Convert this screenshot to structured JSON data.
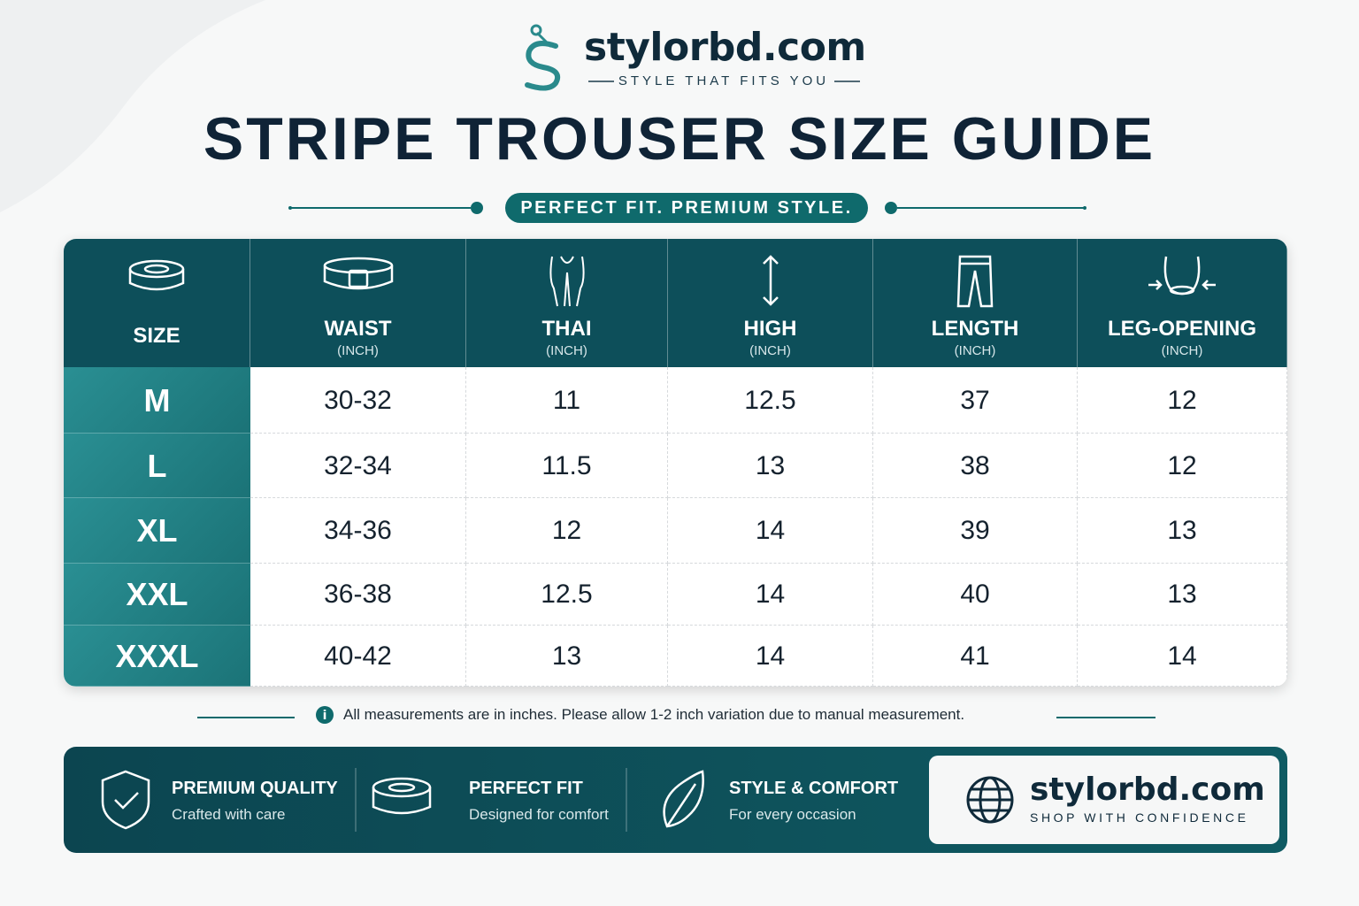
{
  "header": {
    "brand": "stylorbd.com",
    "tagline": "STYLE THAT FITS YOU",
    "title": "STRIPE TROUSER SIZE GUIDE",
    "subtitle": "PERFECT FIT. PREMIUM STYLE."
  },
  "table": {
    "columns": [
      {
        "label": "SIZE"
      },
      {
        "label": "WAIST",
        "unit": "(INCH)"
      },
      {
        "label": "THAI",
        "unit": "(INCH)"
      },
      {
        "label": "HIGH",
        "unit": "(INCH)"
      },
      {
        "label": "LENGTH",
        "unit": "(INCH)"
      },
      {
        "label": "LEG-OPENING",
        "unit": "(INCH)"
      }
    ],
    "rows": [
      [
        "M",
        "30-32",
        "11",
        "12.5",
        "37",
        "12"
      ],
      [
        "L",
        "32-34",
        "11.5",
        "13",
        "38",
        "12"
      ],
      [
        "XL",
        "34-36",
        "12",
        "14",
        "39",
        "13"
      ],
      [
        "XXL",
        "36-38",
        "12.5",
        "14",
        "40",
        "13"
      ],
      [
        "XXXL",
        "40-42",
        "13",
        "14",
        "41",
        "14"
      ]
    ]
  },
  "note": "All measurements are in inches. Please allow 1-2 inch variation due to manual measurement.",
  "features": [
    {
      "title": "PREMIUM QUALITY",
      "text": "Crafted with care"
    },
    {
      "title": "PERFECT FIT",
      "text": "Designed for comfort"
    },
    {
      "title": "STYLE & COMFORT",
      "text": "For every occasion"
    }
  ],
  "footer": {
    "brand": "stylorbd.com",
    "tagline": "SHOP WITH CONFIDENCE"
  }
}
